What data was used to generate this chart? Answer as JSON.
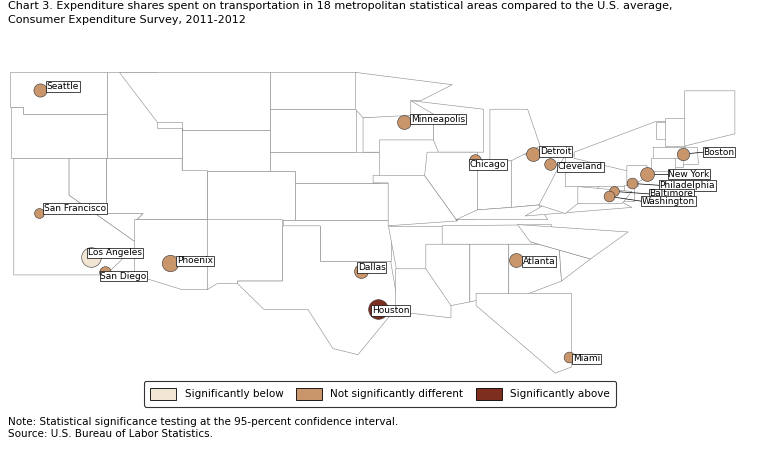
{
  "title_line1": "Chart 3. Expenditure shares spent on transportation in 18 metropolitan statistical areas compared to the U.S. average,",
  "title_line2": "Consumer Expenditure Survey, 2011-2012",
  "title_fontsize": 8.0,
  "note": "Note: Statistical significance testing at the 95-percent confidence interval.\nSource: U.S. Bureau of Labor Statistics.",
  "note_fontsize": 7.5,
  "legend_labels": [
    "Significantly below",
    "Not significantly different",
    "Significantly above"
  ],
  "legend_colors": [
    "#f0e6d3",
    "#c9956b",
    "#7d2e1e"
  ],
  "cities": [
    {
      "name": "Seattle",
      "lon": -122.3,
      "lat": 47.6,
      "category": "not_significant",
      "label_lon": -121.8,
      "label_lat": 47.85,
      "label_ha": "left",
      "marker_size": 90,
      "line": false
    },
    {
      "name": "San Francisco",
      "lon": -122.4,
      "lat": 37.55,
      "category": "not_significant",
      "label_lon": -122.0,
      "label_lat": 37.9,
      "label_ha": "left",
      "marker_size": 50,
      "line": false
    },
    {
      "name": "Los Angeles",
      "lon": -118.25,
      "lat": 34.0,
      "category": "below",
      "label_lon": -118.5,
      "label_lat": 34.3,
      "label_ha": "left",
      "marker_size": 200,
      "line": false
    },
    {
      "name": "San Diego",
      "lon": -117.15,
      "lat": 32.7,
      "category": "not_significant",
      "label_lon": -117.5,
      "label_lat": 32.4,
      "label_ha": "left",
      "marker_size": 70,
      "line": false
    },
    {
      "name": "Phoenix",
      "lon": -112.0,
      "lat": 33.45,
      "category": "not_significant",
      "label_lon": -111.4,
      "label_lat": 33.65,
      "label_ha": "left",
      "marker_size": 140,
      "line": false
    },
    {
      "name": "Minneapolis",
      "lon": -93.3,
      "lat": 44.95,
      "category": "not_significant",
      "label_lon": -92.8,
      "label_lat": 45.2,
      "label_ha": "left",
      "marker_size": 100,
      "line": false
    },
    {
      "name": "Chicago",
      "lon": -87.65,
      "lat": 41.85,
      "category": "not_significant",
      "label_lon": -88.1,
      "label_lat": 41.5,
      "label_ha": "left",
      "marker_size": 70,
      "line": false
    },
    {
      "name": "Detroit",
      "lon": -83.05,
      "lat": 42.35,
      "category": "not_significant",
      "label_lon": -82.5,
      "label_lat": 42.55,
      "label_ha": "left",
      "marker_size": 100,
      "line": false
    },
    {
      "name": "Cleveland",
      "lon": -81.7,
      "lat": 41.5,
      "category": "not_significant",
      "label_lon": -81.1,
      "label_lat": 41.3,
      "label_ha": "left",
      "marker_size": 70,
      "line": false
    },
    {
      "name": "Dallas",
      "lon": -96.8,
      "lat": 32.8,
      "category": "not_significant",
      "label_lon": -97.0,
      "label_lat": 33.1,
      "label_ha": "left",
      "marker_size": 100,
      "line": false
    },
    {
      "name": "Houston",
      "lon": -95.37,
      "lat": 29.76,
      "category": "above",
      "label_lon": -95.9,
      "label_lat": 29.6,
      "label_ha": "left",
      "marker_size": 200,
      "line": false
    },
    {
      "name": "Atlanta",
      "lon": -84.4,
      "lat": 33.75,
      "category": "not_significant",
      "label_lon": -83.9,
      "label_lat": 33.6,
      "label_ha": "left",
      "marker_size": 100,
      "line": false
    },
    {
      "name": "Miami",
      "lon": -80.2,
      "lat": 25.8,
      "category": "not_significant",
      "label_lon": -79.9,
      "label_lat": 25.65,
      "label_ha": "left",
      "marker_size": 60,
      "line": false
    },
    {
      "name": "Boston",
      "lon": -71.1,
      "lat": 42.35,
      "category": "not_significant",
      "label_lon": -69.5,
      "label_lat": 42.5,
      "label_ha": "left",
      "marker_size": 80,
      "line": true
    },
    {
      "name": "New York",
      "lon": -74.0,
      "lat": 40.7,
      "category": "not_significant",
      "label_lon": -72.3,
      "label_lat": 40.7,
      "label_ha": "left",
      "marker_size": 100,
      "line": true
    },
    {
      "name": "Philadelphia",
      "lon": -75.15,
      "lat": 39.95,
      "category": "not_significant",
      "label_lon": -73.0,
      "label_lat": 39.8,
      "label_ha": "left",
      "marker_size": 60,
      "line": true
    },
    {
      "name": "Baltimore",
      "lon": -76.6,
      "lat": 39.3,
      "category": "not_significant",
      "label_lon": -73.8,
      "label_lat": 39.1,
      "label_ha": "left",
      "marker_size": 50,
      "line": true
    },
    {
      "name": "Washington",
      "lon": -77.05,
      "lat": 38.9,
      "category": "not_significant",
      "label_lon": -74.4,
      "label_lat": 38.5,
      "label_ha": "left",
      "marker_size": 60,
      "line": true
    }
  ],
  "category_colors": {
    "below": "#f0e6d3",
    "not_significant": "#c9956b",
    "above": "#7d2e1e"
  },
  "map_face_color": "#ffffff",
  "map_edge_color": "#555555",
  "state_edge_color": "#888888",
  "background_color": "#ffffff",
  "extent": [
    -125,
    -65.5,
    23.5,
    50.5
  ]
}
